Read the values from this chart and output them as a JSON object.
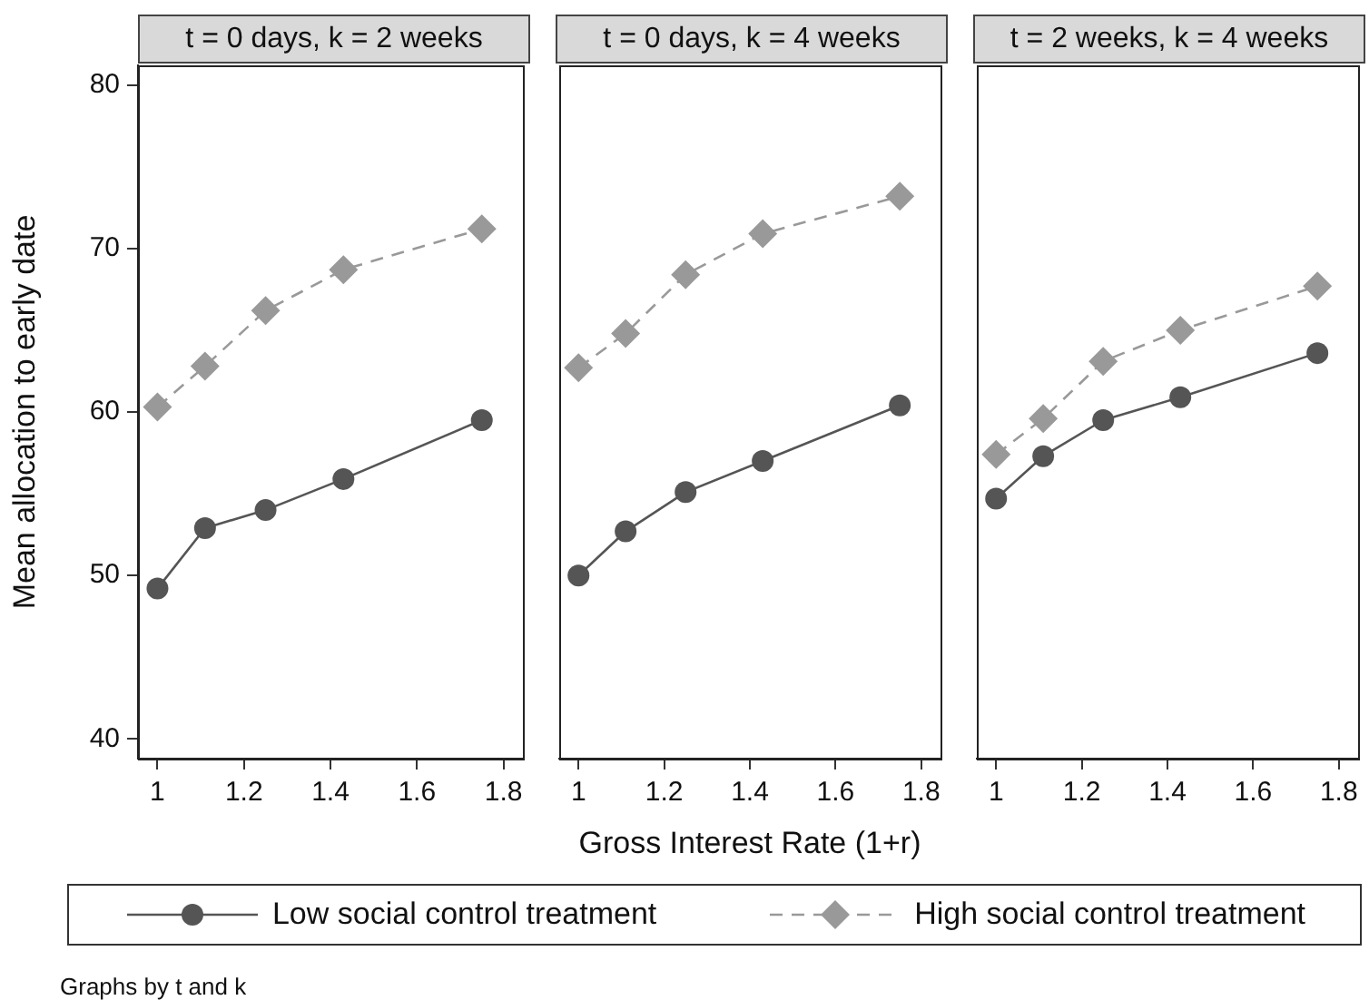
{
  "chart_data": [
    {
      "type": "line",
      "title": "t = 0 days, k = 2 weeks",
      "ylabel": "Mean allocation to early date",
      "x": [
        1,
        1.11,
        1.25,
        1.43,
        1.75
      ],
      "xlim": [
        0.955,
        1.845
      ],
      "xticks": [
        1,
        1.2,
        1.4,
        1.6,
        1.8
      ],
      "ylim": [
        38.8,
        81.2
      ],
      "yticks": [
        40,
        50,
        60,
        70,
        80
      ],
      "legend": "bottom",
      "annotations": [
        "Graphs by t and k"
      ],
      "series": [
        {
          "name": "Low social control treatment",
          "color": "#555555",
          "marker": "circle",
          "line_style": "solid",
          "values": [
            49.2,
            52.9,
            54.0,
            55.9,
            59.5
          ]
        },
        {
          "name": "High social control treatment",
          "color": "#999999",
          "marker": "diamond",
          "line_style": "dashed",
          "values": [
            60.3,
            62.8,
            66.2,
            68.7,
            71.2
          ]
        }
      ]
    },
    {
      "type": "line",
      "title": "t = 0 days, k = 4 weeks",
      "xlabel": "Gross Interest Rate (1+r)",
      "x": [
        1,
        1.11,
        1.25,
        1.43,
        1.75
      ],
      "xlim": [
        0.955,
        1.845
      ],
      "xticks": [
        1,
        1.2,
        1.4,
        1.6,
        1.8
      ],
      "ylim": [
        38.8,
        81.2
      ],
      "tick_labels": "x",
      "series": [
        {
          "color": "#555555",
          "marker": "circle",
          "line_style": "solid",
          "values": [
            50.0,
            52.7,
            55.1,
            57.0,
            60.4
          ]
        },
        {
          "color": "#999999",
          "marker": "diamond",
          "line_style": "dashed",
          "values": [
            62.7,
            64.8,
            68.4,
            70.9,
            73.2
          ]
        }
      ]
    },
    {
      "type": "line",
      "title": "t = 2 weeks, k = 4 weeks",
      "x": [
        1,
        1.11,
        1.25,
        1.43,
        1.75
      ],
      "xlim": [
        0.955,
        1.845
      ],
      "xticks": [
        1,
        1.2,
        1.4,
        1.6,
        1.8
      ],
      "ylim": [
        38.8,
        81.2
      ],
      "tick_labels": "x",
      "series": [
        {
          "color": "#555555",
          "marker": "circle",
          "line_style": "solid",
          "values": [
            54.7,
            57.3,
            59.5,
            60.9,
            63.6
          ]
        },
        {
          "color": "#999999",
          "marker": "diamond",
          "line_style": "dashed",
          "values": [
            57.4,
            59.6,
            63.1,
            65.0,
            67.7
          ]
        }
      ]
    }
  ]
}
